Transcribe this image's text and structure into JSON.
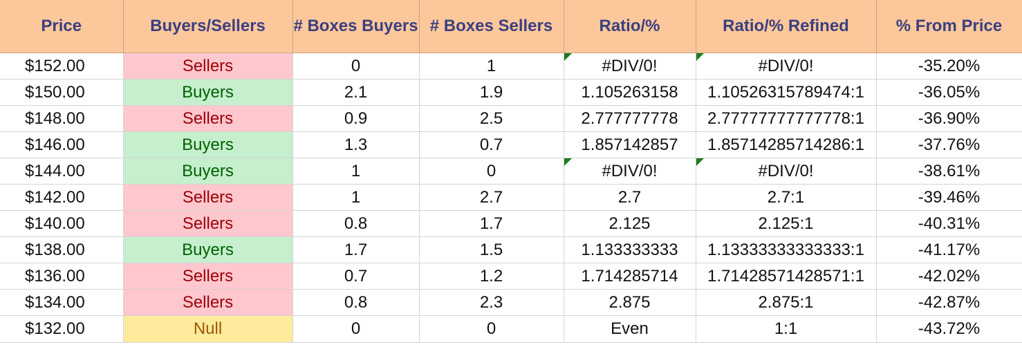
{
  "headers": [
    "Price",
    "Buyers/Sellers",
    "# Boxes Buyers",
    "# Boxes Sellers",
    "Ratio/%",
    "Ratio/% Refined",
    "% From Price"
  ],
  "colors": {
    "header_bg": "#fcc89b",
    "header_text": "#3b3f80",
    "sellers_bg": "#ffc7ce",
    "sellers_text": "#9c0006",
    "buyers_bg": "#c6efce",
    "buyers_text": "#006100",
    "null_bg": "#ffeb9c",
    "null_text": "#9c5700",
    "error_flag": "#1e7b1e"
  },
  "rows": [
    {
      "price": "$152.00",
      "side": "Sellers",
      "boxes_buyers": "0",
      "boxes_sellers": "1",
      "ratio": "#DIV/0!",
      "ratio_refined": "#DIV/0!",
      "from_price": "-35.20%",
      "error_flag": true
    },
    {
      "price": "$150.00",
      "side": "Buyers",
      "boxes_buyers": "2.1",
      "boxes_sellers": "1.9",
      "ratio": "1.105263158",
      "ratio_refined": "1.10526315789474:1",
      "from_price": "-36.05%",
      "error_flag": false
    },
    {
      "price": "$148.00",
      "side": "Sellers",
      "boxes_buyers": "0.9",
      "boxes_sellers": "2.5",
      "ratio": "2.777777778",
      "ratio_refined": "2.77777777777778:1",
      "from_price": "-36.90%",
      "error_flag": false
    },
    {
      "price": "$146.00",
      "side": "Buyers",
      "boxes_buyers": "1.3",
      "boxes_sellers": "0.7",
      "ratio": "1.857142857",
      "ratio_refined": "1.85714285714286:1",
      "from_price": "-37.76%",
      "error_flag": false
    },
    {
      "price": "$144.00",
      "side": "Buyers",
      "boxes_buyers": "1",
      "boxes_sellers": "0",
      "ratio": "#DIV/0!",
      "ratio_refined": "#DIV/0!",
      "from_price": "-38.61%",
      "error_flag": true
    },
    {
      "price": "$142.00",
      "side": "Sellers",
      "boxes_buyers": "1",
      "boxes_sellers": "2.7",
      "ratio": "2.7",
      "ratio_refined": "2.7:1",
      "from_price": "-39.46%",
      "error_flag": false
    },
    {
      "price": "$140.00",
      "side": "Sellers",
      "boxes_buyers": "0.8",
      "boxes_sellers": "1.7",
      "ratio": "2.125",
      "ratio_refined": "2.125:1",
      "from_price": "-40.31%",
      "error_flag": false
    },
    {
      "price": "$138.00",
      "side": "Buyers",
      "boxes_buyers": "1.7",
      "boxes_sellers": "1.5",
      "ratio": "1.133333333",
      "ratio_refined": "1.13333333333333:1",
      "from_price": "-41.17%",
      "error_flag": false
    },
    {
      "price": "$136.00",
      "side": "Sellers",
      "boxes_buyers": "0.7",
      "boxes_sellers": "1.2",
      "ratio": "1.714285714",
      "ratio_refined": "1.71428571428571:1",
      "from_price": "-42.02%",
      "error_flag": false
    },
    {
      "price": "$134.00",
      "side": "Sellers",
      "boxes_buyers": "0.8",
      "boxes_sellers": "2.3",
      "ratio": "2.875",
      "ratio_refined": "2.875:1",
      "from_price": "-42.87%",
      "error_flag": false
    },
    {
      "price": "$132.00",
      "side": "Null",
      "boxes_buyers": "0",
      "boxes_sellers": "0",
      "ratio": "Even",
      "ratio_refined": "1:1",
      "from_price": "-43.72%",
      "error_flag": false
    }
  ]
}
